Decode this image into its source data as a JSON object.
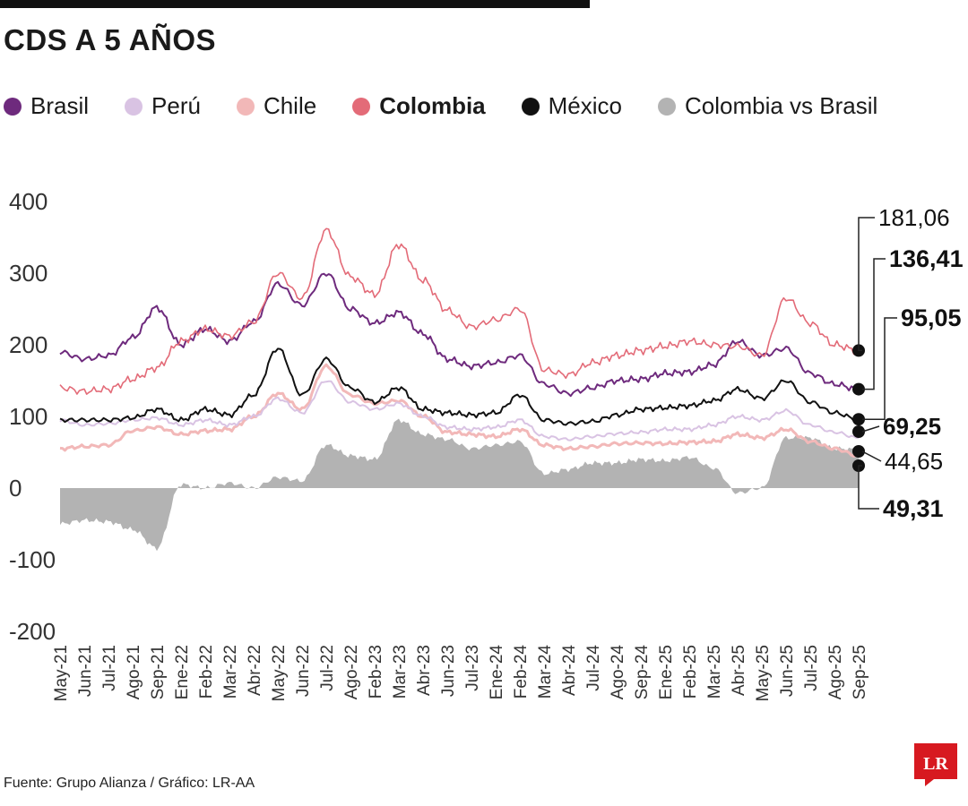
{
  "title": "CDS A 5 AÑOS",
  "source": "Fuente: Grupo Alianza / Gráfico: LR-AA",
  "logo_text": "LR",
  "legend": [
    {
      "label": "Brasil",
      "color": "#6e2a7d",
      "bold": false
    },
    {
      "label": "Perú",
      "color": "#d9c3e3",
      "bold": false
    },
    {
      "label": "Chile",
      "color": "#f2b8b8",
      "bold": false
    },
    {
      "label": "Colombia",
      "color": "#e36b78",
      "bold": true
    },
    {
      "label": "México",
      "color": "#111111",
      "bold": false
    },
    {
      "label": "Colombia vs Brasil",
      "color": "#b3b3b3",
      "bold": false
    }
  ],
  "chart_data": {
    "type": "line",
    "title": "CDS A 5 AÑOS",
    "xlabel": "",
    "ylabel": "",
    "ylim": [
      -200,
      400
    ],
    "yticks": [
      "400",
      "300",
      "200",
      "100",
      "0",
      "-100",
      "-200"
    ],
    "x": [
      "May-21",
      "Jun-21",
      "Jul-21",
      "Ago-21",
      "Sep-21",
      "Ene-22",
      "Feb-22",
      "Mar-22",
      "Abr-22",
      "May-22",
      "Jun-22",
      "Jul-22",
      "Ago-22",
      "Feb-23",
      "Mar-23",
      "Abr-23",
      "Jun-23",
      "Jul-23",
      "Ene-24",
      "Feb-24",
      "Mar-24",
      "Abr-24",
      "Jul-24",
      "Ago-24",
      "Sep-24",
      "Ene-25",
      "Feb-25",
      "Mar-25",
      "Abr-25",
      "May-25",
      "Jun-25",
      "Jul-25",
      "Ago-25",
      "Sep-25"
    ],
    "grid": false,
    "legend_position": "top",
    "series": [
      {
        "name": "Colombia",
        "color": "#e36b78",
        "type": "line",
        "values": [
          140,
          135,
          138,
          152,
          168,
          205,
          222,
          212,
          232,
          300,
          265,
          360,
          295,
          270,
          340,
          290,
          248,
          225,
          235,
          250,
          165,
          158,
          175,
          185,
          192,
          198,
          205,
          200,
          198,
          185,
          265,
          230,
          200,
          192
        ]
      },
      {
        "name": "Brasil",
        "color": "#6e2a7d",
        "type": "line",
        "values": [
          190,
          180,
          185,
          210,
          252,
          200,
          222,
          205,
          232,
          285,
          255,
          300,
          250,
          230,
          245,
          215,
          180,
          170,
          175,
          185,
          145,
          132,
          140,
          150,
          152,
          160,
          162,
          172,
          205,
          185,
          195,
          160,
          145,
          138
        ]
      },
      {
        "name": "México",
        "color": "#111111",
        "type": "line",
        "values": [
          95,
          95,
          95,
          98,
          110,
          95,
          110,
          102,
          130,
          195,
          130,
          180,
          140,
          120,
          140,
          110,
          105,
          102,
          105,
          130,
          95,
          90,
          93,
          102,
          110,
          112,
          115,
          122,
          138,
          125,
          150,
          120,
          105,
          96
        ]
      },
      {
        "name": "Perú",
        "color": "#d9c3e3",
        "type": "line",
        "values": [
          95,
          88,
          90,
          95,
          98,
          88,
          95,
          88,
          100,
          125,
          105,
          150,
          120,
          110,
          118,
          100,
          85,
          82,
          85,
          95,
          72,
          68,
          72,
          76,
          78,
          82,
          82,
          88,
          100,
          95,
          108,
          88,
          78,
          70
        ]
      },
      {
        "name": "Chile",
        "color": "#f2b8b8",
        "type": "line",
        "values": [
          55,
          58,
          60,
          80,
          85,
          75,
          80,
          82,
          100,
          132,
          110,
          170,
          130,
          118,
          122,
          100,
          78,
          75,
          72,
          82,
          60,
          55,
          58,
          62,
          63,
          62,
          64,
          65,
          75,
          70,
          82,
          65,
          55,
          45
        ]
      },
      {
        "name": "Colombia vs Brasil",
        "color": "#b3b3b3",
        "type": "area",
        "values": [
          -50,
          -45,
          -47,
          -58,
          -84,
          5,
          0,
          7,
          0,
          15,
          10,
          60,
          45,
          40,
          95,
          75,
          68,
          55,
          60,
          65,
          20,
          26,
          35,
          35,
          40,
          38,
          43,
          28,
          -7,
          0,
          70,
          70,
          55,
          54
        ]
      }
    ],
    "end_labels": [
      {
        "text": "181,06",
        "bold": false
      },
      {
        "text": "136,41",
        "bold": true
      },
      {
        "text": "95,05",
        "bold": true
      },
      {
        "text": "69,25",
        "bold": true
      },
      {
        "text": "44,65",
        "bold": false
      },
      {
        "text": "49,31",
        "bold": true
      }
    ]
  }
}
